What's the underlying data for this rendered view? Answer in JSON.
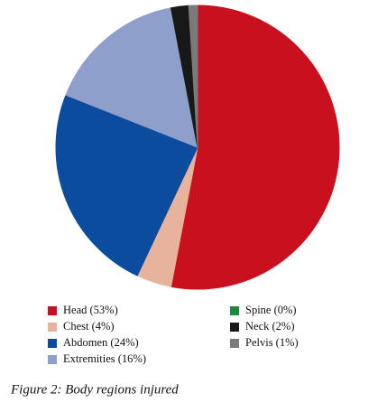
{
  "chart_data": {
    "type": "pie",
    "caption": "Figure 2: Body regions injured",
    "categories": [
      "Head (53%)",
      "Chest (4%)",
      "Abdomen (24%)",
      "Extremities (16%)",
      "Spine (0%)",
      "Neck (2%)",
      "Pelvis (1%)"
    ],
    "values": [
      53,
      4,
      24,
      16,
      0,
      2,
      1
    ],
    "colors": [
      "#c8101f",
      "#e8b39c",
      "#0b4c9f",
      "#8e9fcc",
      "#1a8a3a",
      "#181818",
      "#7a7a7a"
    ]
  }
}
